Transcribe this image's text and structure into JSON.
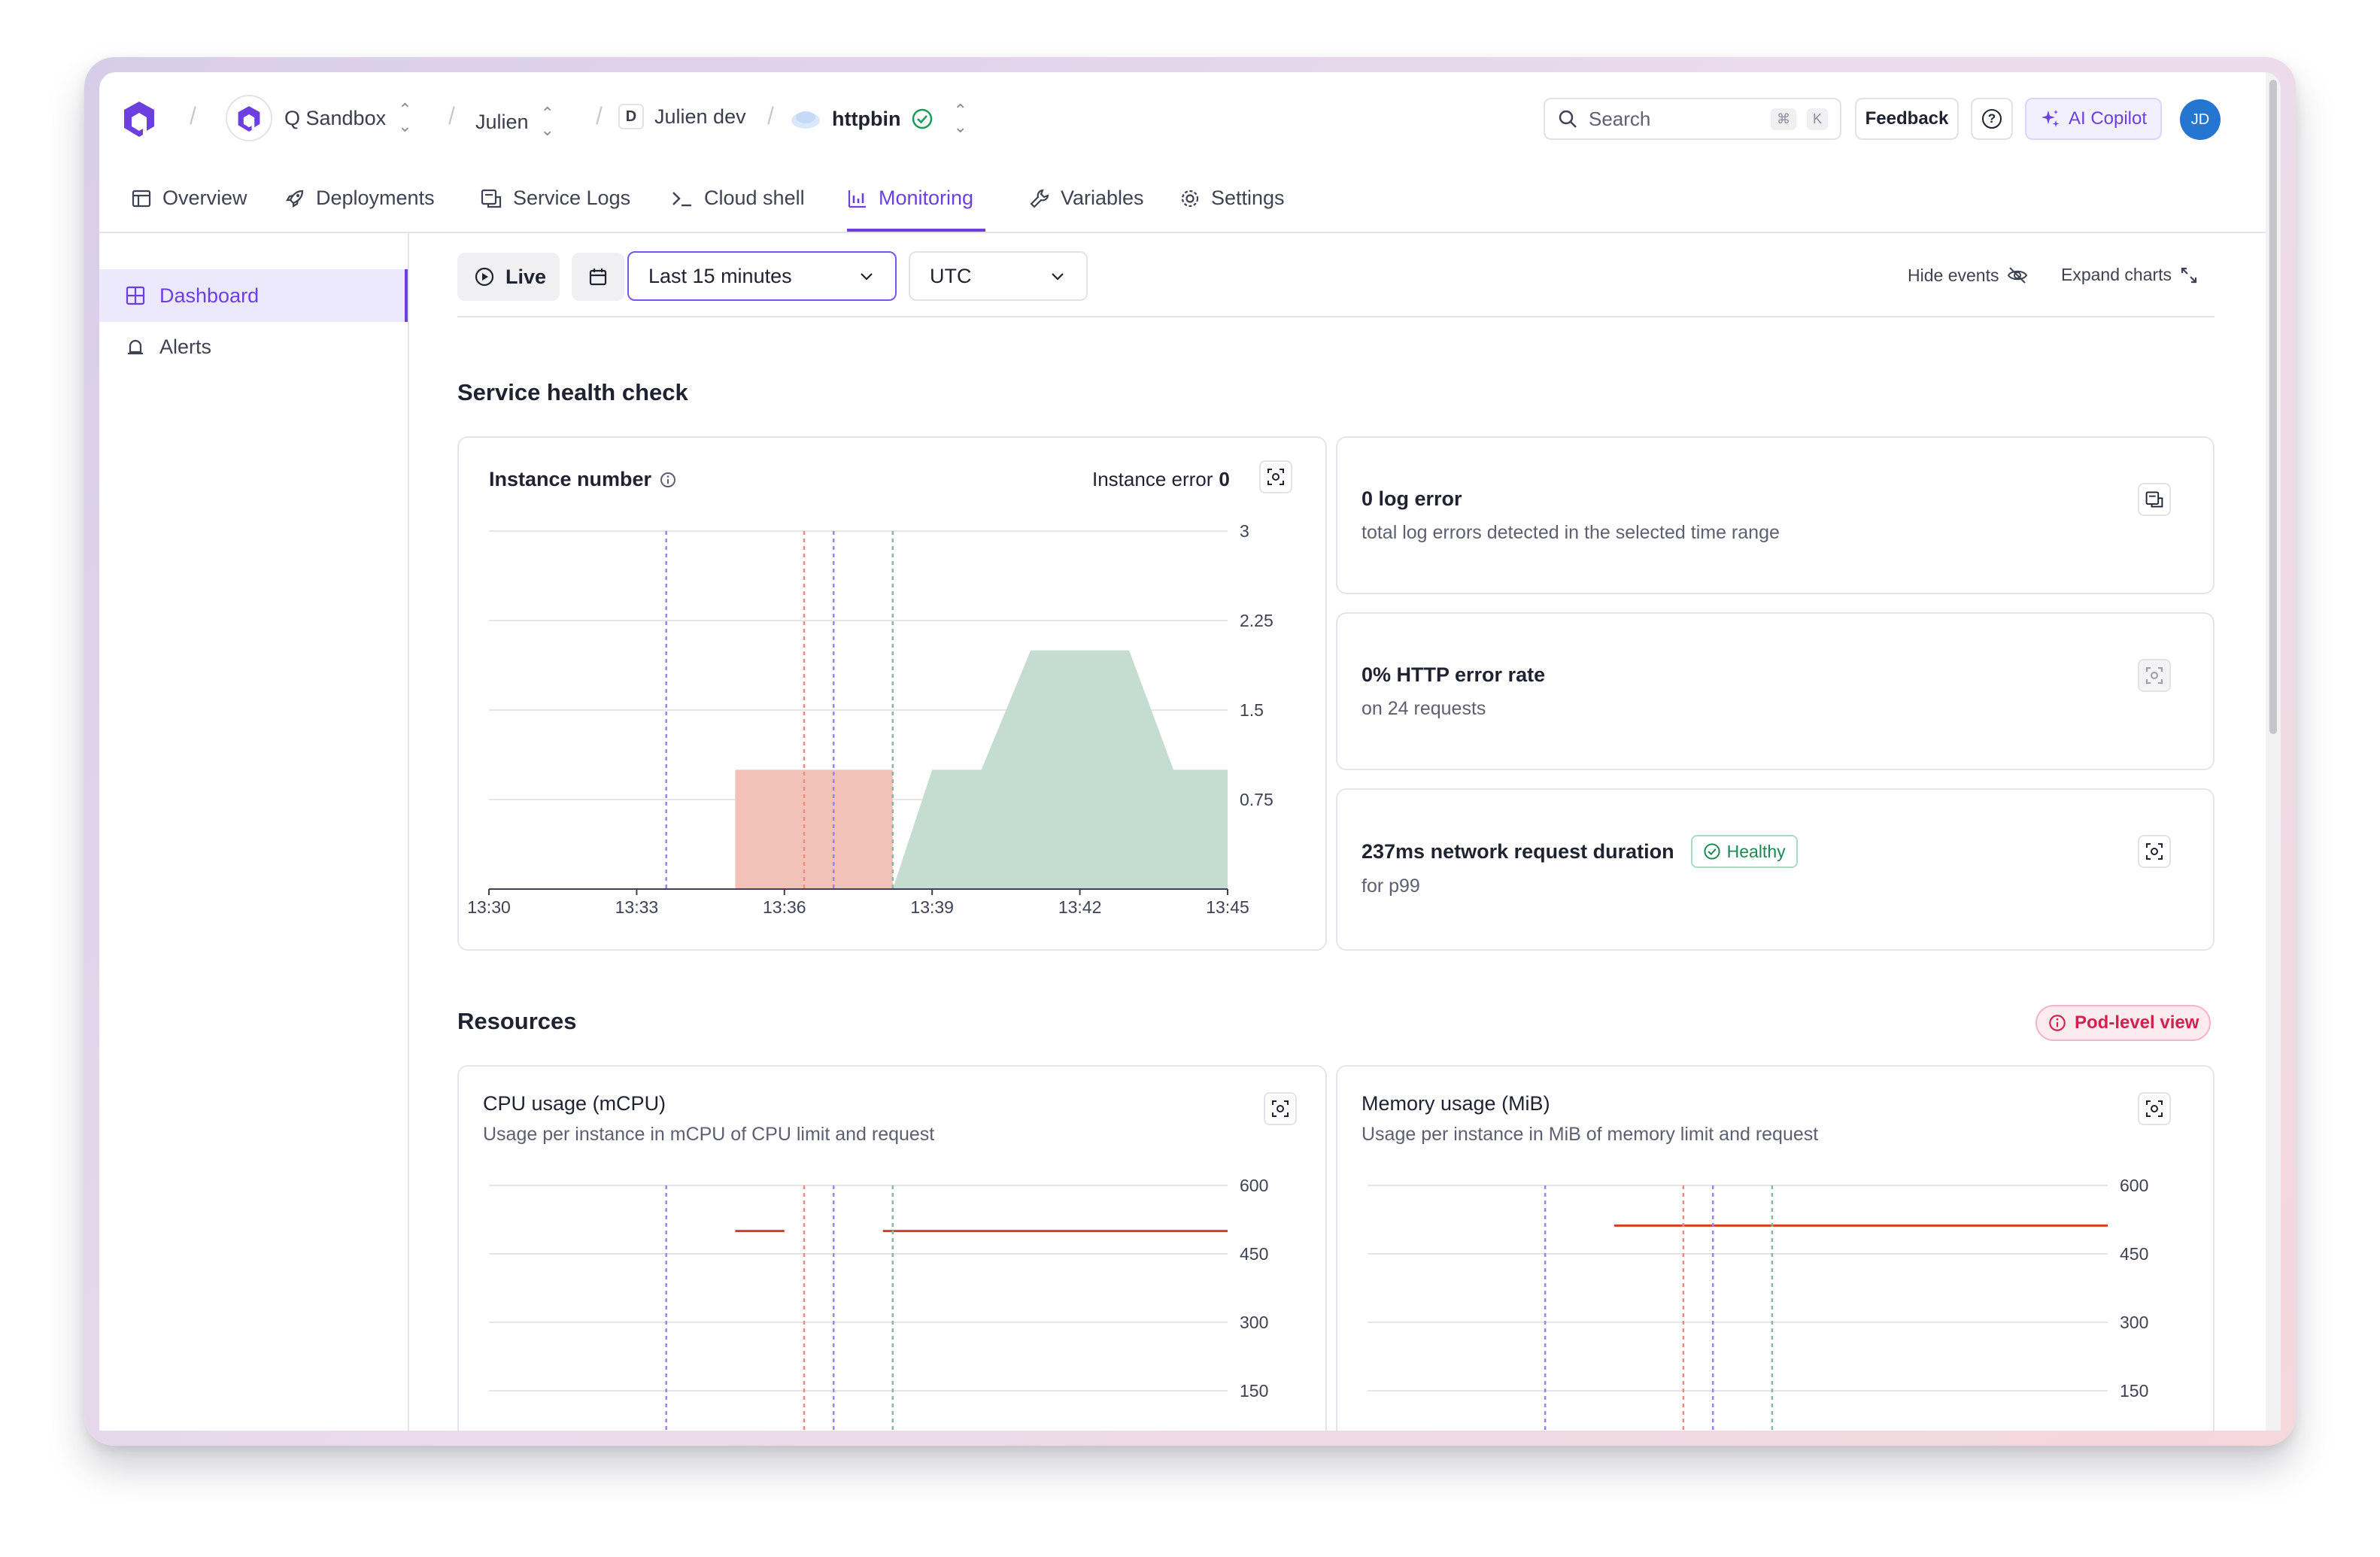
{
  "breadcrumb": {
    "organization": "Q Sandbox",
    "project": "Julien",
    "environment_badge": "D",
    "environment": "Julien dev",
    "service": "httpbin"
  },
  "topbar": {
    "search_placeholder": "Search",
    "search_shortcut_key1": "⌘",
    "search_shortcut_key2": "K",
    "feedback_label": "Feedback",
    "help_label": "?",
    "copilot_label": "AI Copilot",
    "avatar_initials": "JD"
  },
  "tabs": [
    {
      "label": "Overview",
      "icon": "layout-icon"
    },
    {
      "label": "Deployments",
      "icon": "rocket-icon"
    },
    {
      "label": "Service Logs",
      "icon": "logs-icon"
    },
    {
      "label": "Cloud shell",
      "icon": "terminal-icon"
    },
    {
      "label": "Monitoring",
      "icon": "bar-chart-icon",
      "active": true
    },
    {
      "label": "Variables",
      "icon": "wrench-icon"
    },
    {
      "label": "Settings",
      "icon": "gear-icon"
    }
  ],
  "sidebar": {
    "items": [
      {
        "label": "Dashboard",
        "icon": "grid-icon",
        "active": true
      },
      {
        "label": "Alerts",
        "icon": "bell-icon"
      }
    ]
  },
  "controls": {
    "live_label": "Live",
    "time_range": "Last 15 minutes",
    "timezone": "UTC",
    "hide_events": "Hide events",
    "expand_charts": "Expand charts"
  },
  "health": {
    "section_title": "Service health check",
    "instance_card": {
      "title": "Instance number",
      "error_label": "Instance error",
      "error_value": "0"
    },
    "log_error": {
      "title": "0 log error",
      "subtitle": "total log errors detected in the selected time range"
    },
    "http_error": {
      "title": "0% HTTP error rate",
      "subtitle": "on 24 requests"
    },
    "network": {
      "title": "237ms network request duration",
      "badge": "Healthy",
      "subtitle": "for p99"
    }
  },
  "resources": {
    "section_title": "Resources",
    "pod_badge": "Pod-level view",
    "cpu": {
      "title": "CPU usage (mCPU)",
      "subtitle": "Usage per instance in mCPU of CPU limit and request"
    },
    "memory": {
      "title": "Memory usage (MiB)",
      "subtitle": "Usage per instance in MiB of memory limit and request"
    }
  },
  "colors": {
    "accent": "#6b3fe0",
    "healthy_green": "#1a8a52",
    "red_area": "#f2c2b8",
    "green_area": "#c4ddd0",
    "limit_red": "#d2401f",
    "pod_pink": "#d0224e"
  },
  "chart_data": [
    {
      "type": "area",
      "x": [
        "13:30",
        "13:33",
        "13:36",
        "13:39",
        "13:42",
        "13:45"
      ],
      "ylim": [
        0,
        3
      ],
      "y_ticks": [
        "3",
        "2.25",
        "1.5",
        "0.75"
      ],
      "series": [
        {
          "color": "#f2c2b8",
          "points": [
            [
              "13:35.0",
              1
            ],
            [
              "13:38.2",
              1
            ]
          ]
        },
        {
          "color": "#c4ddd0",
          "points": [
            [
              "13:38.2",
              0
            ],
            [
              "13:39.0",
              1
            ],
            [
              "13:40.0",
              1
            ],
            [
              "13:41.0",
              2
            ],
            [
              "13:43.0",
              2
            ],
            [
              "13:43.9",
              1
            ],
            [
              "13:45.0",
              1
            ]
          ]
        }
      ],
      "events": [
        {
          "time": "13:33.6",
          "color": "#9b86e8"
        },
        {
          "time": "13:36.4",
          "color": "#e88d86"
        },
        {
          "time": "13:37.0",
          "color": "#9b86e8"
        },
        {
          "time": "13:38.2",
          "color": "#86b8a0"
        }
      ]
    },
    {
      "type": "line",
      "ylim": [
        0,
        600
      ],
      "y_ticks": [
        "600",
        "450",
        "300",
        "150"
      ],
      "series": [
        {
          "color": "#d2401f",
          "segments": [
            [
              "13:35.0",
              "13:36.0",
              500
            ],
            [
              "13:38.0",
              "13:45.0",
              500
            ]
          ]
        }
      ],
      "events": [
        {
          "time": "13:33.6",
          "color": "#9b86e8"
        },
        {
          "time": "13:36.4",
          "color": "#e88d86"
        },
        {
          "time": "13:37.0",
          "color": "#9b86e8"
        },
        {
          "time": "13:38.2",
          "color": "#86b8a0"
        }
      ]
    },
    {
      "type": "line",
      "ylim": [
        0,
        600
      ],
      "y_ticks": [
        "600",
        "450",
        "300",
        "150"
      ],
      "series": [
        {
          "color": "#d2401f",
          "segments": [
            [
              "13:35.0",
              "13:45.0",
              512
            ]
          ]
        }
      ],
      "events": [
        {
          "time": "13:33.6",
          "color": "#9b86e8"
        },
        {
          "time": "13:36.4",
          "color": "#e88d86"
        },
        {
          "time": "13:37.0",
          "color": "#9b86e8"
        },
        {
          "time": "13:38.2",
          "color": "#86b8a0"
        }
      ]
    }
  ]
}
